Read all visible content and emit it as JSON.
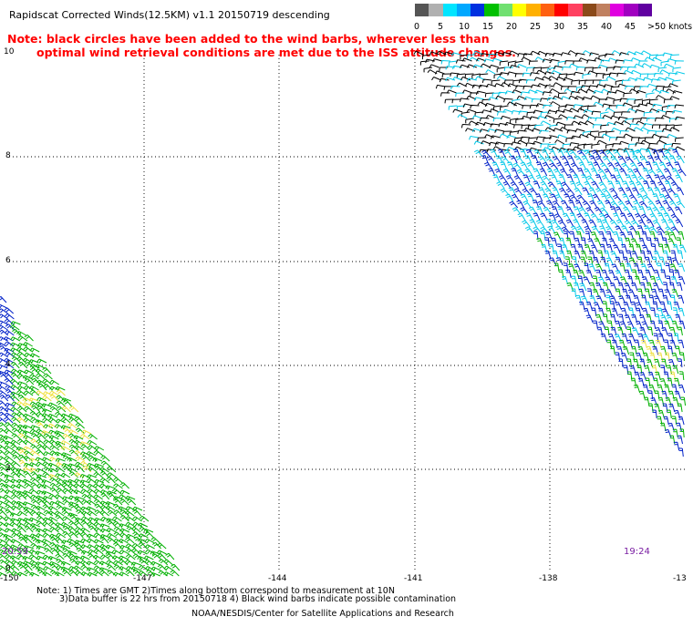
{
  "title": "Rapidscat Corrected Winds(12.5KM) v1.1 20150719 descending",
  "note_line1": "Note: black circles have been added to the wind barbs, wherever less than",
  "note_line2": "optimal wind retrieval conditions are met due to the ISS attitude changes.",
  "legend": {
    "colors": [
      "#555555",
      "#b0b0b0",
      "#00e5ff",
      "#00a8ff",
      "#0030e0",
      "#00c000",
      "#70e070",
      "#ffff00",
      "#ffb000",
      "#ff6010",
      "#ff0000",
      "#ff4060",
      "#8b4a1a",
      "#c08060",
      "#e000e0",
      "#a000c0",
      "#6000a0"
    ],
    "labels": [
      "0",
      "5",
      "10",
      "15",
      "20",
      "25",
      "30",
      "35",
      "40",
      "45",
      ">50 knots"
    ]
  },
  "axes": {
    "y_ticks": [
      "10",
      "8",
      "6",
      "4",
      "2",
      "0"
    ],
    "x_ticks": [
      "-150",
      "-147",
      "-144",
      "-141",
      "-138",
      "-13"
    ]
  },
  "pass_times": {
    "left": "20:59",
    "right": "19:24"
  },
  "footnote_line1": "Note: 1) Times are GMT 2)Times along bottom correspond to measurement at 10N",
  "footnote_line2": "3)Data buffer is 22 hrs from 20150718 4) Black wind barbs indicate possible contamination",
  "credit": "NOAA/NESDIS/Center for Satellite Applications and Research",
  "wind_barb_colors": {
    "black": "#000000",
    "cyan": "#00c8e8",
    "blue": "#0020c8",
    "green": "#00b000",
    "yellow": "#f0e040"
  }
}
